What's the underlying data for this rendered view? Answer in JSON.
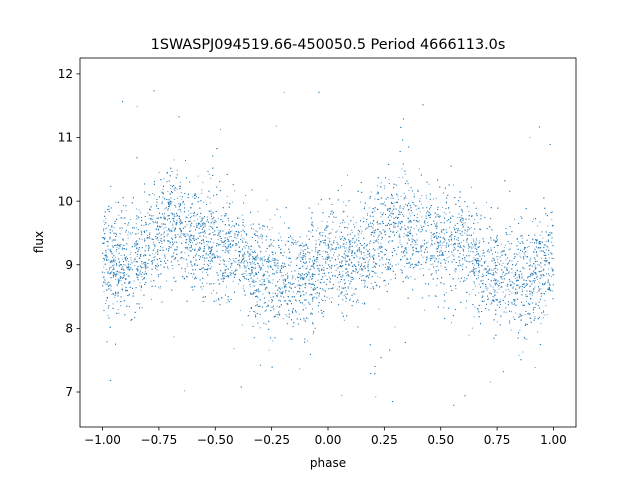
{
  "chart_data": {
    "type": "scatter",
    "title": "1SWASPJ094519.66-450050.5 Period 4666113.0s",
    "xlabel": "phase",
    "ylabel": "flux",
    "xlim": [
      -1.1,
      1.1
    ],
    "ylim": [
      6.45,
      12.25
    ],
    "xticks": [
      -1.0,
      -0.75,
      -0.5,
      -0.25,
      0.0,
      0.25,
      0.5,
      0.75,
      1.0
    ],
    "xtick_labels": [
      "−1.00",
      "−0.75",
      "−0.50",
      "−0.25",
      "0.00",
      "0.25",
      "0.50",
      "0.75",
      "1.00"
    ],
    "yticks": [
      7,
      8,
      9,
      10,
      11,
      12
    ],
    "ytick_labels": [
      "7",
      "8",
      "9",
      "10",
      "11",
      "12"
    ],
    "grid": false,
    "legend": "none",
    "marker_color": "#1f77b4",
    "series": [
      {
        "x_range": [
          -1.0,
          1.0
        ],
        "profile_points": [
          [
            -1.0,
            9.05
          ],
          [
            -0.9,
            9.0
          ],
          [
            -0.8,
            9.3
          ],
          [
            -0.7,
            9.7
          ],
          [
            -0.6,
            9.5
          ],
          [
            -0.5,
            9.3
          ],
          [
            -0.4,
            9.25
          ],
          [
            -0.3,
            8.9
          ],
          [
            -0.2,
            8.75
          ],
          [
            -0.1,
            8.8
          ],
          [
            0.0,
            9.05
          ],
          [
            0.1,
            9.0
          ],
          [
            0.2,
            9.3
          ],
          [
            0.3,
            9.7
          ],
          [
            0.4,
            9.5
          ],
          [
            0.5,
            9.3
          ],
          [
            0.6,
            9.25
          ],
          [
            0.7,
            8.9
          ],
          [
            0.8,
            8.75
          ],
          [
            0.9,
            8.8
          ],
          [
            1.0,
            9.05
          ]
        ],
        "scatter_sd": 0.42,
        "outlier_range": [
          6.7,
          11.85
        ]
      }
    ]
  }
}
